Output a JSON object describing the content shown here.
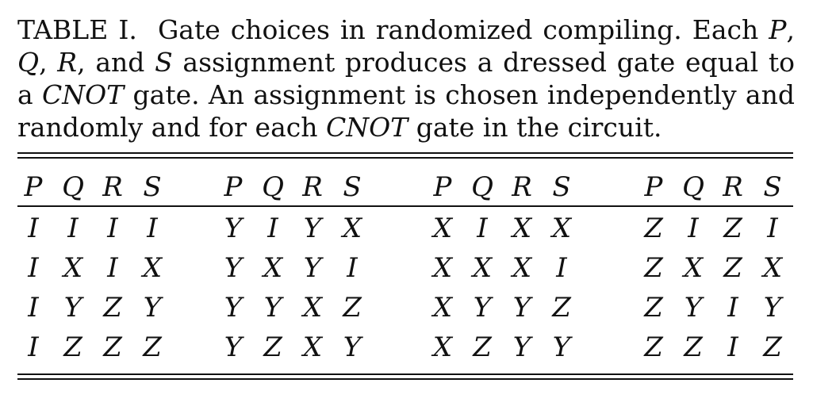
{
  "caption": {
    "label": "TABLE I.",
    "segments": [
      {
        "text": "Gate choices in randomized compiling. Each ",
        "italic": false
      },
      {
        "text": "P",
        "italic": true
      },
      {
        "text": ", ",
        "italic": false
      },
      {
        "text": "Q",
        "italic": true
      },
      {
        "text": ", ",
        "italic": false
      },
      {
        "text": "R",
        "italic": true
      },
      {
        "text": ", and ",
        "italic": false
      },
      {
        "text": "S",
        "italic": true
      },
      {
        "text": " assignment produces a dressed gate equal to a ",
        "italic": false
      },
      {
        "text": "CNOT",
        "italic": true
      },
      {
        "text": " gate. An assignment is chosen independently and randomly and for each ",
        "italic": false
      },
      {
        "text": "CNOT",
        "italic": true
      },
      {
        "text": " gate in the circuit.",
        "italic": false
      }
    ]
  },
  "table": {
    "headers": [
      [
        "P",
        "Q",
        "R",
        "S"
      ],
      [
        "P",
        "Q",
        "R",
        "S"
      ],
      [
        "P",
        "Q",
        "R",
        "S"
      ],
      [
        "P",
        "Q",
        "R",
        "S"
      ]
    ],
    "rows": [
      [
        [
          "I",
          "I",
          "I",
          "I"
        ],
        [
          "Y",
          "I",
          "Y",
          "X"
        ],
        [
          "X",
          "I",
          "X",
          "X"
        ],
        [
          "Z",
          "I",
          "Z",
          "I"
        ]
      ],
      [
        [
          "I",
          "X",
          "I",
          "X"
        ],
        [
          "Y",
          "X",
          "Y",
          "I"
        ],
        [
          "X",
          "X",
          "X",
          "I"
        ],
        [
          "Z",
          "X",
          "Z",
          "X"
        ]
      ],
      [
        [
          "I",
          "Y",
          "Z",
          "Y"
        ],
        [
          "Y",
          "Y",
          "X",
          "Z"
        ],
        [
          "X",
          "Y",
          "Y",
          "Z"
        ],
        [
          "Z",
          "Y",
          "I",
          "Y"
        ]
      ],
      [
        [
          "I",
          "Z",
          "Z",
          "Z"
        ],
        [
          "Y",
          "Z",
          "X",
          "Y"
        ],
        [
          "X",
          "Z",
          "Y",
          "Y"
        ],
        [
          "Z",
          "Z",
          "I",
          "Z"
        ]
      ]
    ]
  }
}
